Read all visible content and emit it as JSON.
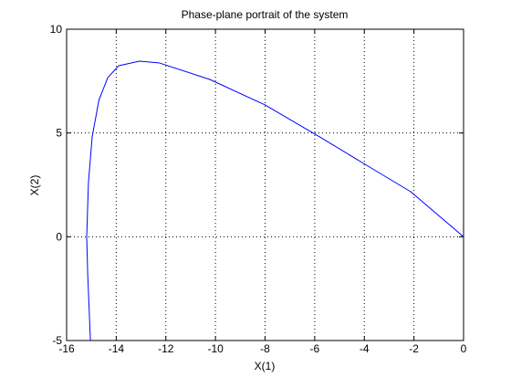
{
  "chart_data": {
    "type": "line",
    "title": "Phase-plane portrait of the system",
    "xlabel": "X(1)",
    "ylabel": "X(2)",
    "x": [
      -15.04,
      -15.15,
      -15.19,
      -15.12,
      -14.97,
      -14.7,
      -14.34,
      -13.9,
      -13.06,
      -12.25,
      -10.23,
      -8.0,
      -5.8,
      -3.97,
      -2.13,
      0
    ],
    "series": [
      {
        "name": "X(2)",
        "color": "#0000ff",
        "values": [
          -5,
          -1.79,
          0,
          2.61,
          4.81,
          6.57,
          7.67,
          8.24,
          8.46,
          8.37,
          7.58,
          6.35,
          4.81,
          3.49,
          2.17,
          0
        ]
      }
    ],
    "xlim": [
      -16,
      0
    ],
    "ylim": [
      -5,
      10
    ],
    "xticks": [
      -16,
      -14,
      -12,
      -10,
      -8,
      -6,
      -4,
      -2,
      0
    ],
    "yticks": [
      -5,
      0,
      5,
      10
    ],
    "grid": true
  }
}
